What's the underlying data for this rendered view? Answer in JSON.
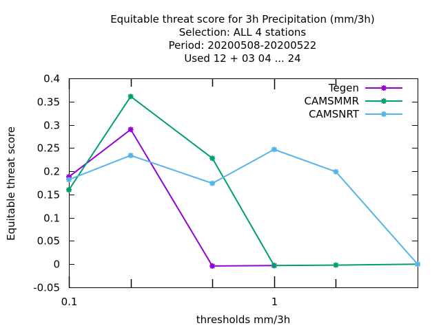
{
  "chart_data": {
    "type": "line",
    "title_lines": [
      "Equitable threat score  for 3h Precipitation (mm/3h)",
      "Selection: ALL      4 stations",
      "Period: 20200508-20200522",
      "Used  12 + 03 04 ... 24"
    ],
    "xlabel": "thresholds mm/3h",
    "ylabel": "Equitable threat score",
    "x_scale": "log",
    "xlim": [
      0.1,
      5
    ],
    "ylim": [
      -0.05,
      0.4
    ],
    "x_tick_labels": [
      {
        "value": 0.1,
        "label": "0.1"
      },
      {
        "value": 1,
        "label": "1"
      }
    ],
    "x_minor_ticks": [
      0.2,
      0.5,
      2
    ],
    "y_ticks": [
      {
        "value": -0.05,
        "label": "-0.05"
      },
      {
        "value": 0,
        "label": "0"
      },
      {
        "value": 0.05,
        "label": "0.05"
      },
      {
        "value": 0.1,
        "label": "0.1"
      },
      {
        "value": 0.15,
        "label": "0.15"
      },
      {
        "value": 0.2,
        "label": "0.2"
      },
      {
        "value": 0.25,
        "label": "0.25"
      },
      {
        "value": 0.3,
        "label": "0.3"
      },
      {
        "value": 0.35,
        "label": "0.35"
      },
      {
        "value": 0.4,
        "label": "0.4"
      }
    ],
    "grid": false,
    "legend_position": "top-right",
    "series": [
      {
        "name": "Tegen",
        "color": "#9400d3",
        "x": [
          0.1,
          0.2,
          0.5,
          1
        ],
        "y": [
          0.188,
          0.29,
          -0.004,
          -0.003
        ]
      },
      {
        "name": "CAMSMMR",
        "color": "#009e73",
        "x": [
          0.1,
          0.2,
          0.5,
          1,
          2,
          5
        ],
        "y": [
          0.16,
          0.361,
          0.228,
          -0.003,
          -0.002,
          0.0
        ]
      },
      {
        "name": "CAMSNRT",
        "color": "#56b4e9",
        "x": [
          0.1,
          0.2,
          0.5,
          1,
          2,
          5
        ],
        "y": [
          0.182,
          0.234,
          0.174,
          0.247,
          0.199,
          0.0
        ]
      }
    ]
  }
}
